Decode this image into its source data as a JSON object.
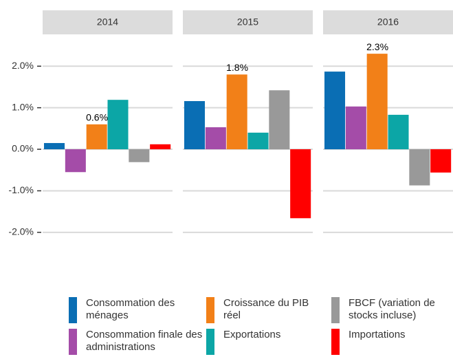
{
  "chart_data": {
    "type": "bar",
    "categories": [
      "2014",
      "2015",
      "2016"
    ],
    "series": [
      {
        "name": "Consommation des ménages",
        "color": "#0a6eb4",
        "values": [
          0.15,
          1.16,
          1.87
        ]
      },
      {
        "name": "Consommation finale des administrations",
        "color": "#a44ca8",
        "values": [
          -0.55,
          0.53,
          1.03
        ]
      },
      {
        "name": "Croissance du PIB réel",
        "color": "#f28018",
        "values": [
          0.6,
          1.8,
          2.3
        ],
        "value_labels": [
          "0.6%",
          "1.8%",
          "2.3%"
        ]
      },
      {
        "name": "Exportations",
        "color": "#0ca6a6",
        "values": [
          1.19,
          0.4,
          0.83
        ]
      },
      {
        "name": "FBCF (variation de stocks incluse)",
        "color": "#999999",
        "values": [
          -0.31,
          1.42,
          -0.87
        ]
      },
      {
        "name": "Importations",
        "color": "#ff0000",
        "values": [
          0.12,
          -1.66,
          -0.56
        ]
      }
    ],
    "ylim": [
      -2.4,
      2.6
    ],
    "yticks": [
      {
        "value": -2,
        "label": "-2.0%"
      },
      {
        "value": -1,
        "label": "-1.0%"
      },
      {
        "value": 0,
        "label": "0.0%"
      },
      {
        "value": 1,
        "label": "1.0%"
      },
      {
        "value": 2,
        "label": "2.0%"
      }
    ],
    "grid": true
  }
}
